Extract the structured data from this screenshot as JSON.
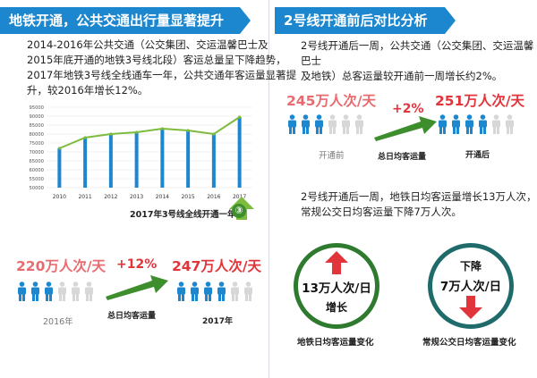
{
  "left": {
    "banner": "地铁开通，公共交通出行量显著提升",
    "para_lines": [
      "2014-2016年公共交通（公交集团、交运温馨巴士及",
      "2015年底开通的地铁3号线北段）客运总量呈下降趋势，",
      "2017年地铁3号线全线通车一年，公共交通年客运量显著提",
      "升，较2016年增长12%。"
    ],
    "annotation": "2017年3号线全线开通一年",
    "badge": "③",
    "compare": {
      "before_value": "220万人次/天",
      "after_value": "247万人次/天",
      "change": "+12%",
      "metric": "总日均客运量",
      "before_year": "2016年",
      "after_year": "2017年"
    }
  },
  "right": {
    "banner": "2号线开通前后对比分析",
    "para_lines": [
      "2号线开通后一周，公共交通（公交集团、交运温馨巴士",
      "及地铁）总客运量较开通前一周增长约2%。"
    ],
    "compare": {
      "before_value": "245万人次/天",
      "after_value": "251万人次/天",
      "change": "+2%",
      "metric": "总日均客运量",
      "before_label": "开通前",
      "after_label": "开通后"
    },
    "para2_lines": [
      "2号线开通后一周，地铁日均客运量增长13万人次，",
      "常规公交日均客运量下降7万人次。"
    ],
    "metro": {
      "value": "13万人次/日",
      "label": "增长",
      "caption": "地铁日均客运量变化"
    },
    "bus": {
      "value": "7万人次/日",
      "label": "下降",
      "caption": "常规公交日均客运量变化"
    }
  },
  "colors": {
    "banner": "#1c87cf",
    "highlight": "#e2343b",
    "person_blue": "#1c87cf",
    "person_gray": "#d7d7d7",
    "bar": "#1c87cf",
    "line": "#7dbb3c",
    "arrow_green": "#3e8e2e",
    "arrow_red": "#e2343b"
  },
  "people": {
    "left_before": {
      "blue": 3,
      "gray": 3
    },
    "left_after": {
      "blue": 4,
      "gray": 2
    },
    "right_before": {
      "blue": 3,
      "gray": 3
    },
    "right_after": {
      "blue": 4,
      "gray": 2
    }
  },
  "chart_data": {
    "type": "bar",
    "categories": [
      "2010",
      "2011",
      "2012",
      "2013",
      "2014",
      "2015",
      "2016",
      "2017"
    ],
    "values": [
      72000,
      78000,
      80000,
      81000,
      83000,
      82000,
      80000,
      89500
    ],
    "line_overlay": true,
    "y_ticks": [
      50000,
      55000,
      60000,
      65000,
      70000,
      75000,
      80000,
      85000,
      90000,
      95000
    ],
    "ylim": [
      50000,
      95000
    ],
    "title": "",
    "xlabel": "",
    "ylabel": "",
    "grid": true
  }
}
